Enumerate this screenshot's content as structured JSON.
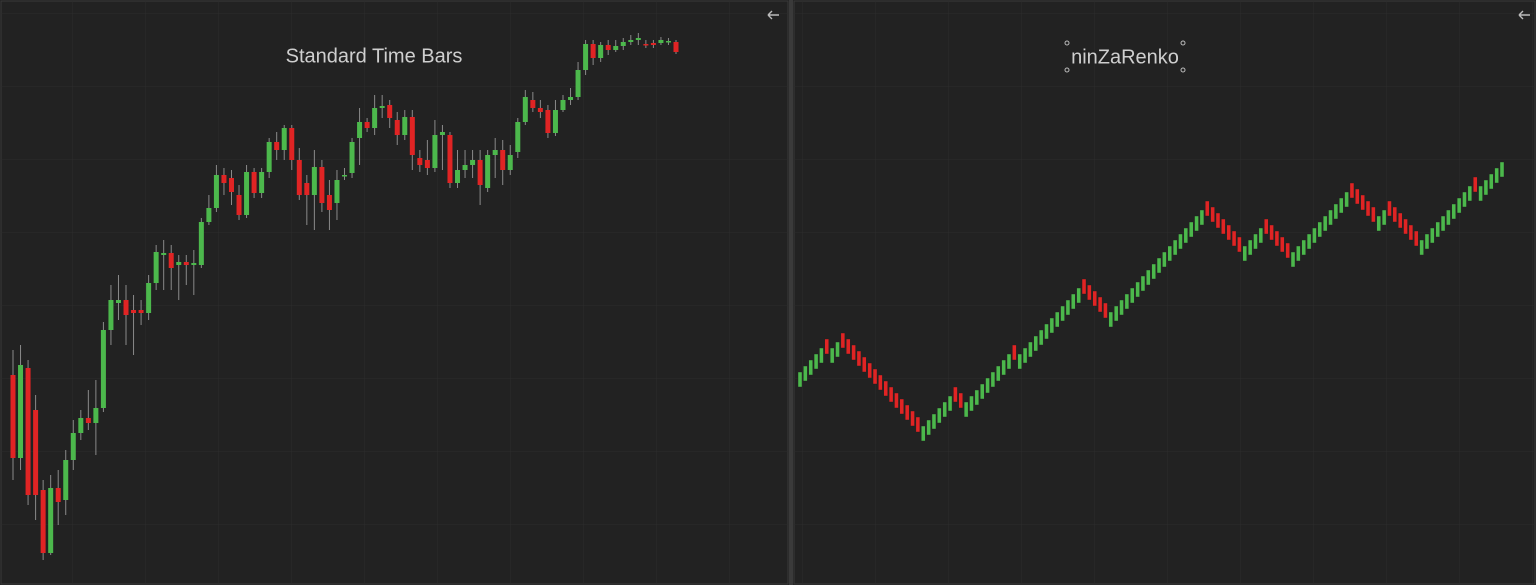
{
  "chart_data": [
    {
      "type": "candlestick",
      "title": "Standard Time Bars",
      "up_color": "#4cb84c",
      "down_color": "#e02424",
      "ylim": [
        15,
        600
      ],
      "open": [
        225,
        142,
        232,
        190,
        110,
        47,
        112,
        100,
        140,
        167,
        182,
        177,
        192,
        270,
        297,
        300,
        290,
        290,
        287,
        317,
        345,
        347,
        335,
        338,
        335,
        335,
        378,
        392,
        425,
        422,
        405,
        385,
        428,
        407,
        428,
        458,
        450,
        472,
        440,
        417,
        405,
        433,
        405,
        397,
        425,
        427,
        462,
        478,
        472,
        492,
        495,
        480,
        465,
        483,
        442,
        440,
        432,
        465,
        465,
        417,
        430,
        435,
        440,
        412,
        445,
        450,
        430,
        448,
        478,
        500,
        492,
        490,
        467,
        490,
        500,
        503,
        530,
        556,
        542,
        555,
        550,
        554,
        558,
        560,
        556,
        557,
        557,
        558,
        558
      ],
      "high": [
        250,
        255,
        240,
        205,
        120,
        125,
        130,
        150,
        180,
        190,
        210,
        220,
        278,
        315,
        325,
        315,
        305,
        300,
        325,
        355,
        360,
        355,
        345,
        345,
        350,
        382,
        405,
        435,
        432,
        430,
        415,
        435,
        432,
        432,
        462,
        468,
        475,
        475,
        452,
        425,
        450,
        440,
        420,
        430,
        432,
        462,
        492,
        482,
        505,
        505,
        500,
        488,
        490,
        490,
        450,
        460,
        480,
        475,
        468,
        450,
        450,
        450,
        450,
        450,
        462,
        460,
        455,
        482,
        510,
        508,
        500,
        495,
        500,
        505,
        512,
        538,
        560,
        560,
        558,
        560,
        560,
        562,
        565,
        567,
        560,
        560,
        563,
        562,
        560
      ],
      "low": [
        120,
        130,
        95,
        80,
        40,
        45,
        75,
        85,
        130,
        160,
        170,
        145,
        188,
        255,
        280,
        255,
        245,
        275,
        280,
        310,
        310,
        310,
        300,
        315,
        305,
        332,
        375,
        388,
        405,
        395,
        380,
        382,
        402,
        402,
        422,
        440,
        440,
        430,
        400,
        375,
        370,
        388,
        370,
        380,
        420,
        422,
        435,
        468,
        465,
        482,
        472,
        455,
        460,
        430,
        428,
        425,
        428,
        430,
        412,
        412,
        422,
        422,
        395,
        408,
        422,
        415,
        425,
        442,
        475,
        488,
        482,
        462,
        464,
        488,
        495,
        500,
        525,
        535,
        538,
        545,
        548,
        550,
        555,
        555,
        552,
        552,
        555,
        555,
        546
      ],
      "close": [
        142,
        235,
        105,
        105,
        47,
        112,
        98,
        140,
        167,
        182,
        177,
        192,
        270,
        300,
        300,
        285,
        287,
        287,
        317,
        348,
        347,
        332,
        338,
        335,
        337,
        378,
        392,
        425,
        417,
        408,
        385,
        428,
        407,
        428,
        458,
        450,
        472,
        440,
        405,
        405,
        433,
        397,
        390,
        420,
        425,
        458,
        478,
        472,
        492,
        494,
        482,
        465,
        483,
        445,
        435,
        432,
        465,
        468,
        417,
        430,
        435,
        440,
        415,
        445,
        450,
        430,
        445,
        478,
        503,
        492,
        488,
        467,
        490,
        500,
        503,
        530,
        556,
        542,
        555,
        550,
        554,
        558,
        560,
        562,
        555,
        555,
        560,
        559,
        548
      ]
    },
    {
      "type": "renko",
      "title": "ninZaRenko",
      "up_color": "#4cb84c",
      "down_color": "#e02424",
      "ylim": [
        15,
        600
      ],
      "open": [
        213,
        219,
        225,
        231,
        237,
        261,
        237,
        243,
        267,
        261,
        255,
        249,
        243,
        237,
        231,
        225,
        219,
        213,
        207,
        201,
        195,
        189,
        183,
        159,
        165,
        171,
        177,
        183,
        189,
        213,
        207,
        183,
        189,
        195,
        201,
        207,
        213,
        219,
        225,
        231,
        255,
        231,
        237,
        243,
        249,
        255,
        261,
        267,
        273,
        279,
        285,
        291,
        297,
        321,
        315,
        309,
        303,
        297,
        273,
        279,
        285,
        291,
        297,
        303,
        309,
        315,
        321,
        327,
        333,
        339,
        345,
        351,
        357,
        363,
        369,
        375,
        399,
        393,
        387,
        381,
        375,
        369,
        363,
        339,
        345,
        351,
        357,
        381,
        375,
        369,
        363,
        357,
        333,
        339,
        345,
        351,
        357,
        363,
        369,
        375,
        381,
        387,
        393,
        417,
        411,
        405,
        399,
        393,
        369,
        375,
        399,
        393,
        387,
        381,
        375,
        369,
        345,
        351,
        357,
        363,
        369,
        375,
        381,
        387,
        393,
        399,
        423,
        399,
        405,
        411,
        417,
        423
      ],
      "close": [
        228,
        234,
        240,
        246,
        252,
        246,
        252,
        258,
        252,
        246,
        240,
        234,
        228,
        222,
        216,
        210,
        204,
        198,
        192,
        186,
        180,
        174,
        168,
        174,
        180,
        186,
        192,
        198,
        204,
        198,
        192,
        198,
        204,
        210,
        216,
        222,
        228,
        234,
        240,
        246,
        240,
        246,
        252,
        258,
        264,
        270,
        276,
        282,
        288,
        294,
        300,
        306,
        312,
        306,
        300,
        294,
        288,
        282,
        288,
        294,
        300,
        306,
        312,
        318,
        324,
        330,
        336,
        342,
        348,
        354,
        360,
        366,
        372,
        378,
        384,
        390,
        384,
        378,
        372,
        366,
        360,
        354,
        348,
        354,
        360,
        366,
        372,
        366,
        360,
        354,
        348,
        342,
        348,
        354,
        360,
        366,
        372,
        378,
        384,
        390,
        396,
        402,
        408,
        402,
        396,
        390,
        384,
        378,
        384,
        390,
        384,
        378,
        372,
        366,
        360,
        354,
        360,
        366,
        372,
        378,
        384,
        390,
        396,
        402,
        408,
        414,
        408,
        414,
        420,
        426,
        432,
        438
      ]
    }
  ]
}
